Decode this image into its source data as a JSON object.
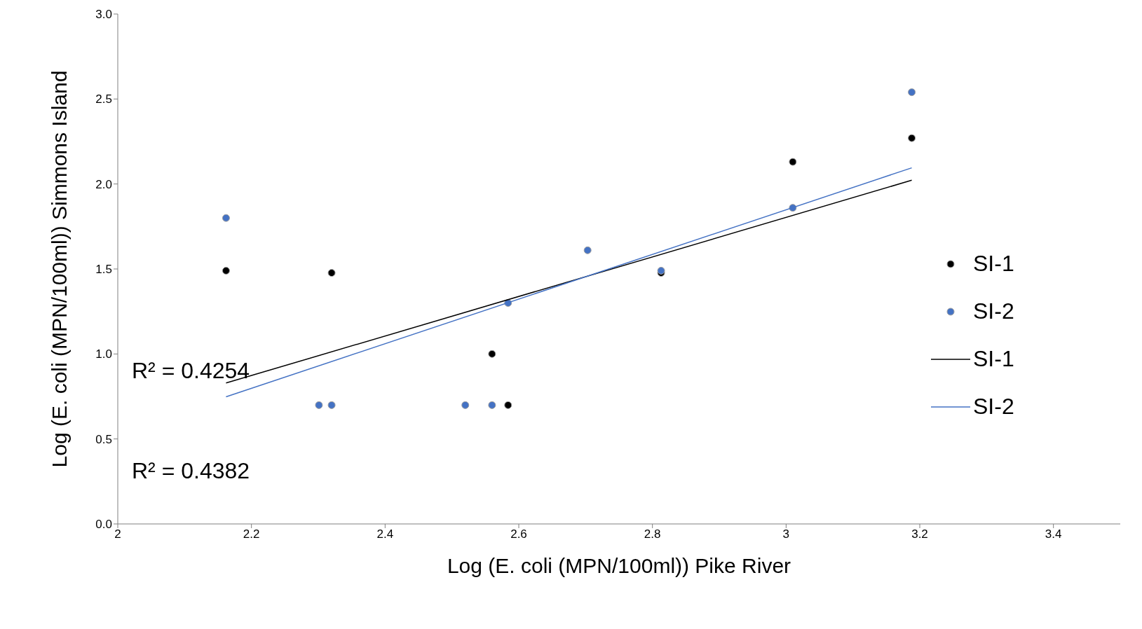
{
  "chart_data": {
    "type": "scatter",
    "xlabel": "Log (E. coli (MPN/100ml)) Pike River",
    "ylabel": "Log (E. coli (MPN/100ml)) Simmons Island",
    "xlim": [
      2,
      3.5
    ],
    "xticks": [
      2,
      2.2,
      2.4,
      2.6,
      2.8,
      3,
      3.2,
      3.4
    ],
    "ylim": [
      0,
      3
    ],
    "yticks": [
      {
        "value": 0,
        "label": "0.0"
      },
      {
        "value": 0.5,
        "label": "0.5"
      },
      {
        "value": 1,
        "label": "1.0"
      },
      {
        "value": 1.5,
        "label": "1.5"
      },
      {
        "value": 2,
        "label": "2.0"
      },
      {
        "value": 2.5,
        "label": "2.5"
      },
      {
        "value": 3,
        "label": "3.0"
      }
    ],
    "grid": false,
    "legend": "right",
    "marker": "circle",
    "series": [
      {
        "name": "SI-1",
        "color": "#000000",
        "x": [
          2.162,
          2.32,
          2.56,
          2.584,
          2.813,
          3.01,
          3.188
        ],
        "values": [
          1.49,
          1.477,
          1.0,
          0.699,
          1.477,
          2.13,
          2.27
        ]
      },
      {
        "name": "SI-2",
        "color": "#4472c4",
        "x": [
          2.162,
          2.301,
          2.32,
          2.52,
          2.56,
          2.584,
          2.703,
          2.813,
          3.01,
          3.188
        ],
        "values": [
          1.8,
          0.699,
          0.699,
          0.699,
          0.699,
          1.3,
          1.61,
          1.49,
          1.86,
          2.54
        ]
      },
      {
        "name": "SI-1",
        "type": "line",
        "marker": "none",
        "color": "#000000",
        "x": [
          2.162,
          3.188
        ],
        "values": [
          0.829,
          2.022
        ]
      },
      {
        "name": "SI-2",
        "type": "line",
        "marker": "none",
        "color": "#4472c4",
        "x": [
          2.162,
          3.188
        ],
        "values": [
          0.748,
          2.095
        ]
      }
    ],
    "annotations": [
      "R² = 0.4254",
      "R² = 0.4382"
    ]
  }
}
